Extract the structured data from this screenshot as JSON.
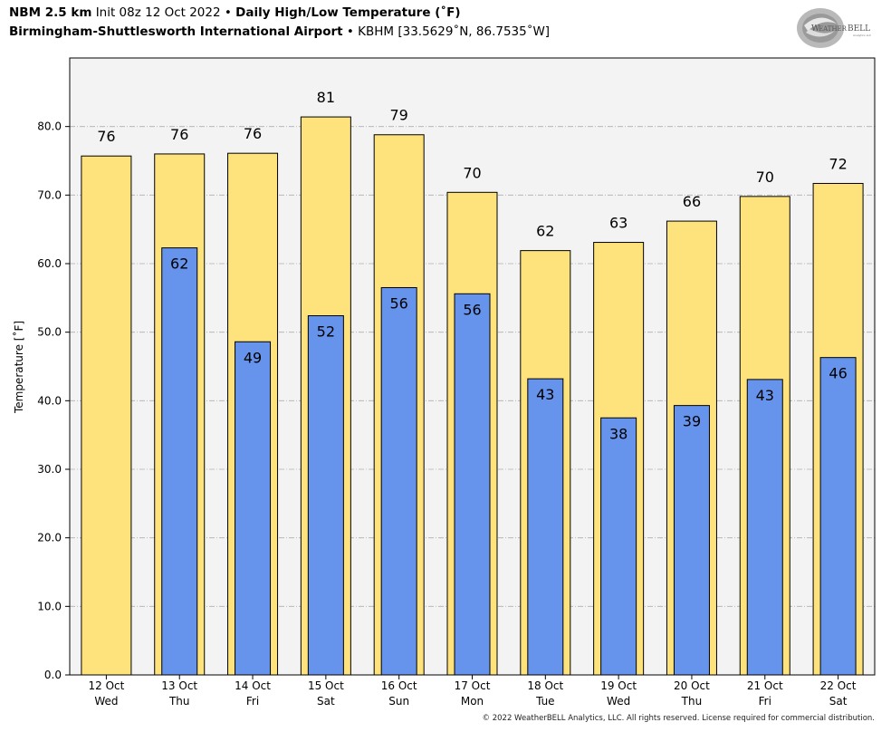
{
  "header": {
    "model": "NBM 2.5 km",
    "init": "Init 08z 12 Oct 2022",
    "bullet": "•",
    "product": "Daily High/Low Temperature (˚F)",
    "station_name": "Birmingham-Shuttlesworth International Airport",
    "station_info": "KBHM [33.5629˚N, 86.7535˚W]"
  },
  "logo": {
    "text": "WEATHERBELL",
    "icon": "weatherbell-logo"
  },
  "footer": {
    "copyright": "© 2022 WeatherBELL Analytics, LLC. All rights reserved. License required for commercial distribution."
  },
  "colors": {
    "high": "#FEE27B",
    "low": "#6693EB",
    "plot_bg": "#F3F3F3",
    "grid": "#B0B0B0"
  },
  "chart_data": {
    "type": "bar",
    "ylabel": "Temperature [˚F]",
    "ylim": [
      0,
      90
    ],
    "yticks": [
      "0.0",
      "10.0",
      "20.0",
      "30.0",
      "40.0",
      "50.0",
      "60.0",
      "70.0",
      "80.0"
    ],
    "grid": true,
    "categories": [
      [
        "12 Oct",
        "Wed"
      ],
      [
        "13 Oct",
        "Thu"
      ],
      [
        "14 Oct",
        "Fri"
      ],
      [
        "15 Oct",
        "Sat"
      ],
      [
        "16 Oct",
        "Sun"
      ],
      [
        "17 Oct",
        "Mon"
      ],
      [
        "18 Oct",
        "Tue"
      ],
      [
        "19 Oct",
        "Wed"
      ],
      [
        "20 Oct",
        "Thu"
      ],
      [
        "21 Oct",
        "Fri"
      ],
      [
        "22 Oct",
        "Sat"
      ]
    ],
    "series": [
      {
        "key": "high",
        "values": [
          75.7,
          76.0,
          76.1,
          81.4,
          78.8,
          70.4,
          61.9,
          63.1,
          66.2,
          69.8,
          71.7
        ],
        "labels": [
          "76",
          "76",
          "76",
          "81",
          "79",
          "70",
          "62",
          "63",
          "66",
          "70",
          "72"
        ]
      },
      {
        "key": "low",
        "values": [
          null,
          62.3,
          48.6,
          52.4,
          56.5,
          55.6,
          43.2,
          37.5,
          39.3,
          43.1,
          46.3
        ],
        "labels": [
          "",
          "62",
          "49",
          "52",
          "56",
          "56",
          "43",
          "38",
          "39",
          "43",
          "46"
        ]
      }
    ]
  }
}
